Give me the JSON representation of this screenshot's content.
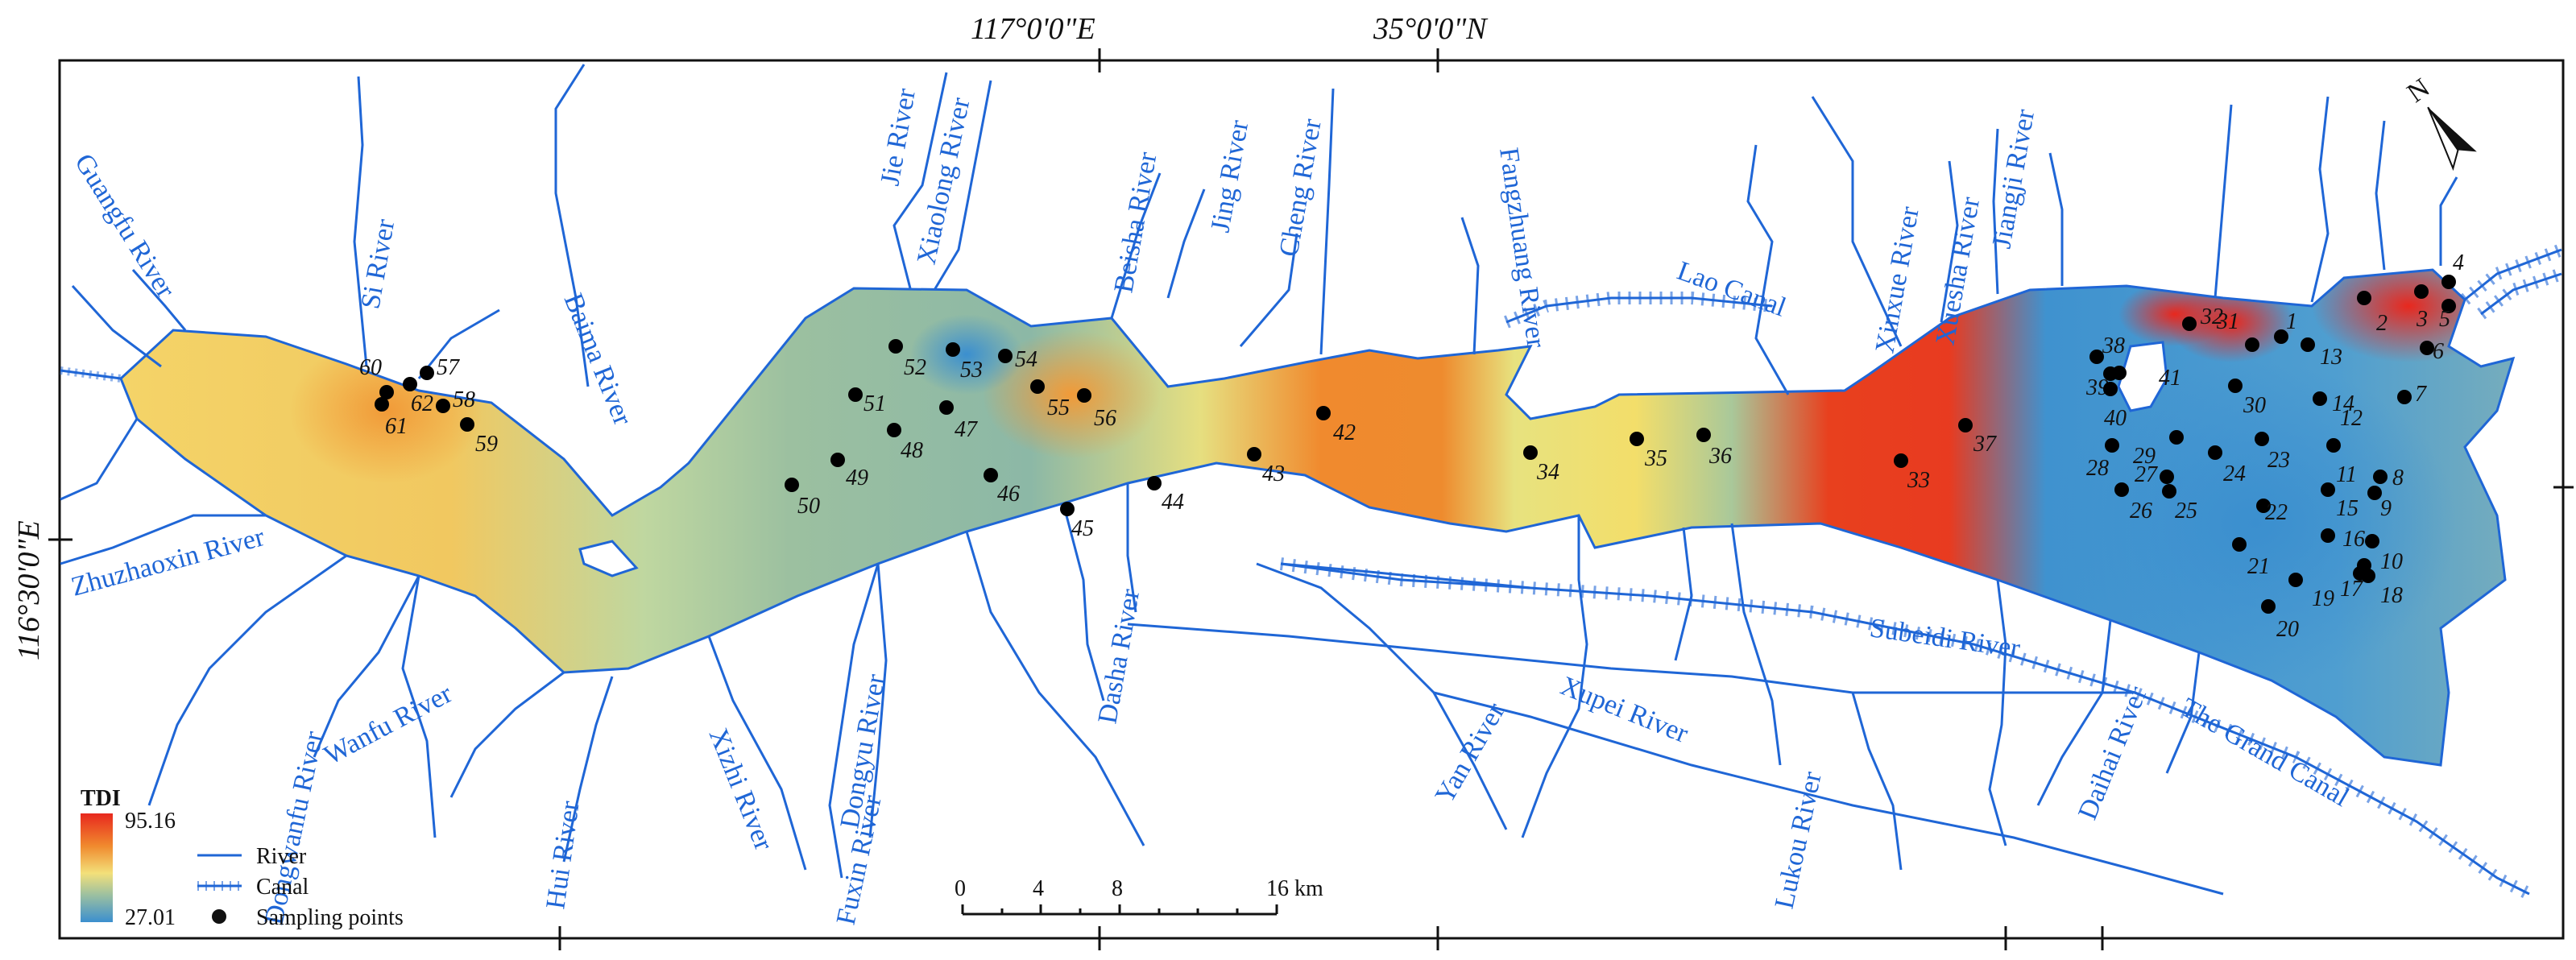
{
  "graticule": {
    "lon_label_1": "117°0'0\"E",
    "lon_label_2": "35°0'0\"N",
    "lat_label": "116°30'0\"E"
  },
  "rivers": [
    "Guangfu River",
    "Si River",
    "Baima River",
    "Jie River",
    "Xiaolong River",
    "Beisha River",
    "Jing River",
    "Cheng River",
    "Fangzhuang River",
    "Lao Canal",
    "Xinxue River",
    "Xuesha River",
    "Jiangji River",
    "Zhuzhaoxin River",
    "Dongwanfu River",
    "Wanfu River",
    "Hui River",
    "Xizhi River",
    "Dongyu River",
    "Fuxin River",
    "Dasha River",
    "Yan River",
    "Xupei River",
    "Lukou River",
    "Subeidi River",
    "Daihai River",
    "The Grand Canal"
  ],
  "sampling_points": [
    {
      "id": "1"
    },
    {
      "id": "2"
    },
    {
      "id": "3"
    },
    {
      "id": "4"
    },
    {
      "id": "5"
    },
    {
      "id": "6"
    },
    {
      "id": "7"
    },
    {
      "id": "8"
    },
    {
      "id": "9"
    },
    {
      "id": "10"
    },
    {
      "id": "11"
    },
    {
      "id": "12"
    },
    {
      "id": "13"
    },
    {
      "id": "14"
    },
    {
      "id": "15"
    },
    {
      "id": "16"
    },
    {
      "id": "17"
    },
    {
      "id": "18"
    },
    {
      "id": "19"
    },
    {
      "id": "20"
    },
    {
      "id": "21"
    },
    {
      "id": "22"
    },
    {
      "id": "23"
    },
    {
      "id": "24"
    },
    {
      "id": "25"
    },
    {
      "id": "26"
    },
    {
      "id": "27"
    },
    {
      "id": "28"
    },
    {
      "id": "29"
    },
    {
      "id": "30"
    },
    {
      "id": "31"
    },
    {
      "id": "32"
    },
    {
      "id": "33"
    },
    {
      "id": "34"
    },
    {
      "id": "35"
    },
    {
      "id": "36"
    },
    {
      "id": "37"
    },
    {
      "id": "38"
    },
    {
      "id": "39"
    },
    {
      "id": "40"
    },
    {
      "id": "41"
    },
    {
      "id": "42"
    },
    {
      "id": "43"
    },
    {
      "id": "44"
    },
    {
      "id": "45"
    },
    {
      "id": "46"
    },
    {
      "id": "47"
    },
    {
      "id": "48"
    },
    {
      "id": "49"
    },
    {
      "id": "50"
    },
    {
      "id": "51"
    },
    {
      "id": "52"
    },
    {
      "id": "53"
    },
    {
      "id": "54"
    },
    {
      "id": "55"
    },
    {
      "id": "56"
    },
    {
      "id": "57"
    },
    {
      "id": "58"
    },
    {
      "id": "59"
    },
    {
      "id": "60"
    },
    {
      "id": "61"
    },
    {
      "id": "62"
    }
  ],
  "legend": {
    "title": "TDI",
    "max": "95.16",
    "min": "27.01",
    "river": "River",
    "canal": "Canal",
    "sampling": "Sampling points"
  },
  "scale_bar": {
    "ticks": [
      "0",
      "4",
      "8",
      "16 km"
    ]
  },
  "colors": {
    "river": "#1f66d6",
    "high": "#e8281e",
    "orange": "#f08a2e",
    "yellow": "#f3e07a",
    "light_green": "#c8dc9a",
    "green": "#8fb8a0",
    "low": "#3b8fcf",
    "point": "#000000"
  }
}
